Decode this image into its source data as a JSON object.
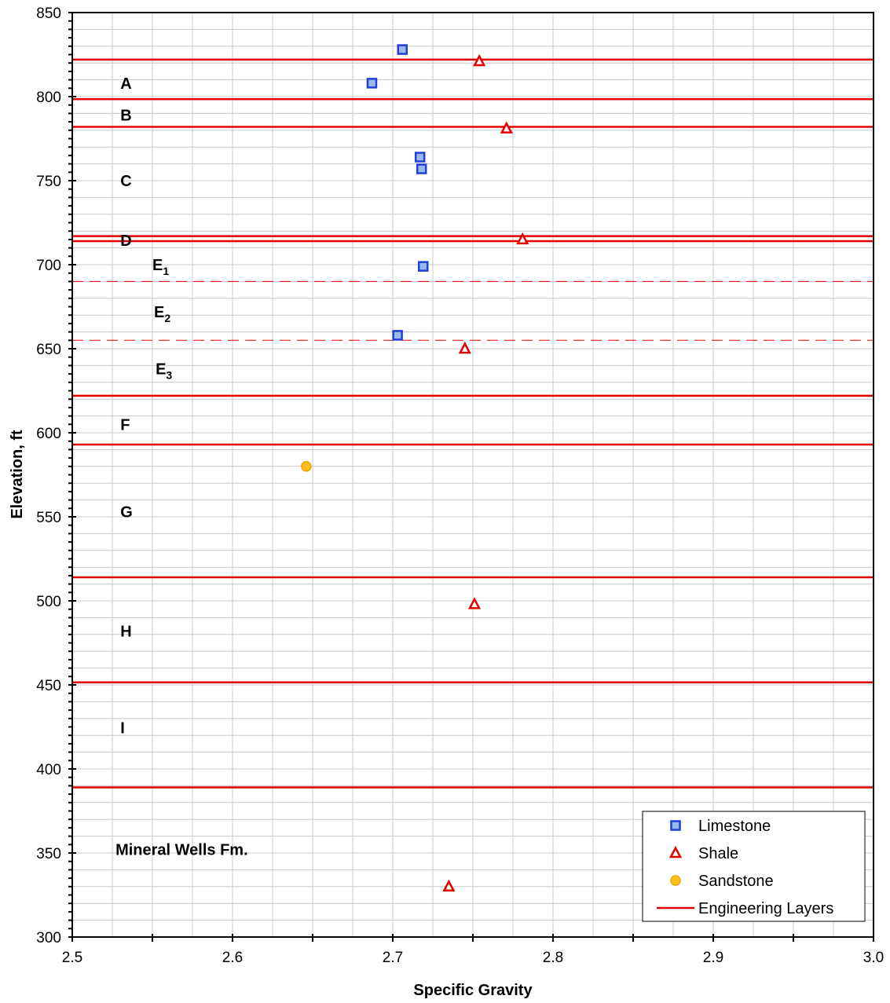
{
  "chart_data": {
    "type": "scatter",
    "title": "",
    "xlabel": "Specific Gravity",
    "ylabel": "Elevation, ft",
    "xlim": [
      2.5,
      3.0
    ],
    "ylim": [
      300,
      850
    ],
    "x_ticks": [
      "2.5",
      "2.6",
      "2.7",
      "2.8",
      "2.9",
      "3.0"
    ],
    "y_ticks": [
      "300",
      "350",
      "400",
      "450",
      "500",
      "550",
      "600",
      "650",
      "700",
      "750",
      "800",
      "850"
    ],
    "grid": true,
    "legend_position": "bottom-right",
    "series": [
      {
        "name": "Limestone",
        "marker": "square",
        "color": "#1f3fd6",
        "fill": "#9ab8f0",
        "points": [
          {
            "x": 2.706,
            "y": 828
          },
          {
            "x": 2.687,
            "y": 808
          },
          {
            "x": 2.717,
            "y": 764
          },
          {
            "x": 2.718,
            "y": 757
          },
          {
            "x": 2.719,
            "y": 699
          },
          {
            "x": 2.703,
            "y": 658
          }
        ]
      },
      {
        "name": "Shale",
        "marker": "triangle",
        "color": "#e00000",
        "fill": "#ffffff",
        "points": [
          {
            "x": 2.754,
            "y": 821
          },
          {
            "x": 2.771,
            "y": 781
          },
          {
            "x": 2.781,
            "y": 715
          },
          {
            "x": 2.745,
            "y": 650
          },
          {
            "x": 2.751,
            "y": 498
          },
          {
            "x": 2.735,
            "y": 330
          }
        ]
      },
      {
        "name": "Sandstone",
        "marker": "circle",
        "color": "#f0a000",
        "fill": "#ffc020",
        "points": [
          {
            "x": 2.646,
            "y": 580
          }
        ]
      }
    ],
    "engineering_layers": {
      "name": "Engineering Layers",
      "color": "#e00000",
      "solid_elevations": [
        822,
        798.5,
        782,
        717,
        714,
        622,
        593,
        514,
        451.5,
        389
      ],
      "dashed_elevations": [
        690,
        655
      ]
    },
    "layer_labels": [
      {
        "text": "A",
        "sub": "",
        "x": 2.53,
        "y": 808
      },
      {
        "text": "B",
        "sub": "",
        "x": 2.53,
        "y": 789
      },
      {
        "text": "C",
        "sub": "",
        "x": 2.53,
        "y": 750
      },
      {
        "text": "D",
        "sub": "",
        "x": 2.53,
        "y": 714.5
      },
      {
        "text": "E",
        "sub": "1",
        "x": 2.55,
        "y": 700
      },
      {
        "text": "E",
        "sub": "2",
        "x": 2.551,
        "y": 672
      },
      {
        "text": "E",
        "sub": "3",
        "x": 2.552,
        "y": 638
      },
      {
        "text": "F",
        "sub": "",
        "x": 2.53,
        "y": 605
      },
      {
        "text": "G",
        "sub": "",
        "x": 2.53,
        "y": 553
      },
      {
        "text": "H",
        "sub": "",
        "x": 2.53,
        "y": 482
      },
      {
        "text": "I",
        "sub": "",
        "x": 2.53,
        "y": 424.5
      },
      {
        "text": "Mineral Wells Fm.",
        "sub": "",
        "x": 2.527,
        "y": 352
      }
    ]
  }
}
